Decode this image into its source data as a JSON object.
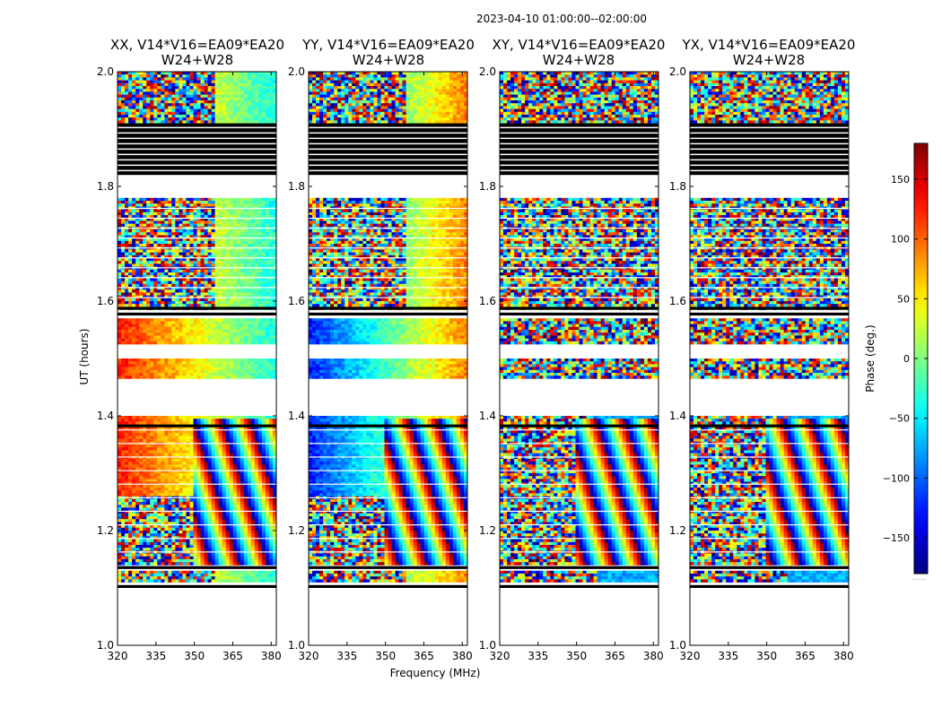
{
  "suptitle": "2023-04-10  01:00:00--02:00:00",
  "panels": [
    {
      "title_line1": "XX, V14*V16=EA09*EA20",
      "title_line2": "W24+W28"
    },
    {
      "title_line1": "YY, V14*V16=EA09*EA20",
      "title_line2": "W24+W28"
    },
    {
      "title_line1": "XY, V14*V16=EA09*EA20",
      "title_line2": "W24+W28"
    },
    {
      "title_line1": "YX, V14*V16=EA09*EA20",
      "title_line2": "W24+W28"
    }
  ],
  "xlabel": "Frequency (MHz)",
  "ylabel": "UT (hours)",
  "colorbar_label": "Phase (deg.)",
  "colorbar_dots": "......",
  "chart_data": {
    "type": "heatmap",
    "title": "2023-04-10  01:00:00--02:00:00",
    "xlabel": "Frequency (MHz)",
    "ylabel": "UT (hours)",
    "xlim": [
      320,
      382
    ],
    "ylim": [
      1.0,
      2.0
    ],
    "xticks": [
      320,
      335,
      350,
      365,
      380
    ],
    "yticks": [
      1.0,
      1.2,
      1.4,
      1.6,
      1.8,
      2.0
    ],
    "ytick_labels": [
      "1.0",
      "1.2",
      "1.4",
      "1.6",
      "1.8",
      "2.0"
    ],
    "colorbar": {
      "label": "Phase (deg.)",
      "range": [
        -180,
        180
      ],
      "ticks": [
        -150,
        -100,
        -50,
        0,
        50,
        100,
        150
      ],
      "colormap": "jet"
    },
    "series": [
      {
        "name": "XX"
      },
      {
        "name": "YY"
      },
      {
        "name": "XY"
      },
      {
        "name": "YX"
      }
    ],
    "data_ranges_hours": [
      [
        1.11,
        1.13
      ],
      [
        1.14,
        1.4
      ],
      [
        1.47,
        1.5
      ],
      [
        1.53,
        1.57
      ],
      [
        1.59,
        1.78
      ],
      [
        1.91,
        2.0
      ]
    ],
    "flagged_ranges_hours": [
      [
        1.1,
        1.105
      ],
      [
        1.133,
        1.138
      ],
      [
        1.38,
        1.385
      ],
      [
        1.575,
        1.58
      ],
      [
        1.585,
        1.59
      ],
      [
        1.82,
        1.91
      ]
    ]
  }
}
